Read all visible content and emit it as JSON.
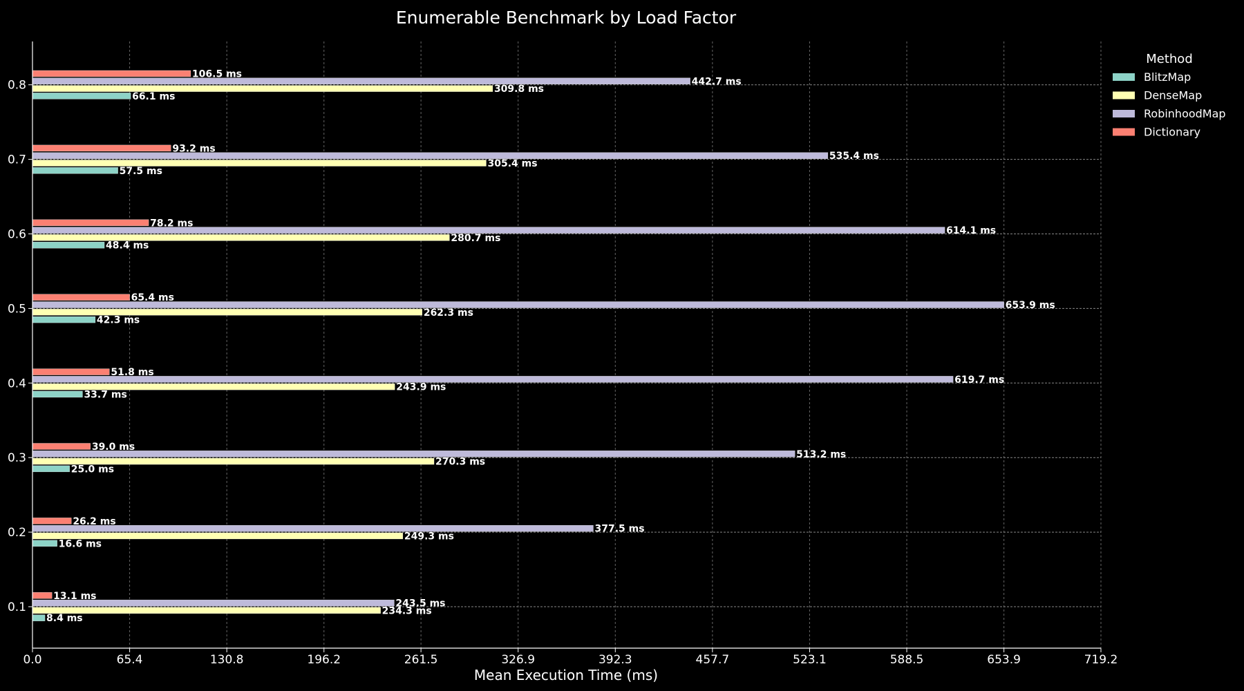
{
  "chart_data": {
    "type": "bar",
    "orientation": "horizontal",
    "title": "Enumerable Benchmark by Load Factor",
    "xlabel": "Mean Execution Time (ms)",
    "ylabel": "",
    "categories": [
      "0.1",
      "0.2",
      "0.3",
      "0.4",
      "0.5",
      "0.6",
      "0.7",
      "0.8"
    ],
    "x_ticks": [
      "0.0",
      "65.4",
      "130.8",
      "196.2",
      "261.5",
      "326.9",
      "392.3",
      "457.7",
      "523.1",
      "588.5",
      "653.9",
      "719.2"
    ],
    "xlim": [
      0,
      719.2
    ],
    "value_suffix": " ms",
    "grid": true,
    "legend": {
      "title": "Method",
      "placement": "upper-right-outside"
    },
    "series": [
      {
        "name": "BlitzMap",
        "color": "#8dd3c7",
        "values": [
          8.4,
          16.6,
          25.0,
          33.7,
          42.3,
          48.4,
          57.5,
          66.1
        ]
      },
      {
        "name": "DenseMap",
        "color": "#ffffb3",
        "values": [
          234.3,
          249.3,
          270.3,
          243.9,
          262.3,
          280.7,
          305.4,
          309.8
        ]
      },
      {
        "name": "RobinhoodMap",
        "color": "#bebada",
        "values": [
          243.5,
          377.5,
          513.2,
          619.7,
          653.9,
          614.1,
          535.4,
          442.7
        ]
      },
      {
        "name": "Dictionary",
        "color": "#fb8072",
        "values": [
          13.1,
          26.2,
          39.0,
          51.8,
          65.4,
          78.2,
          93.2,
          106.5
        ]
      }
    ]
  }
}
